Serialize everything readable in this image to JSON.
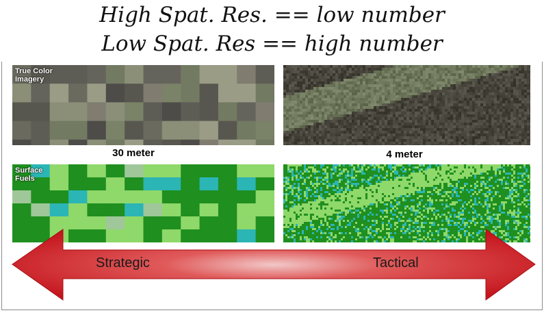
{
  "title": {
    "line1": "High Spat. Res. == low number",
    "line2": "Low Spat. Res == high number"
  },
  "panels": {
    "true_color_label": "True Color\nImagery",
    "surface_fuels_label": "Surface\nFuels",
    "coarse_resolution_label": "30 meter",
    "fine_resolution_label": "4 meter"
  },
  "arrow": {
    "left_label": "Strategic",
    "right_label": "Tactical",
    "color": "#c4141c"
  },
  "colors": {
    "fuel_dark_green": "#1f8f1f",
    "fuel_light_green": "#8fd86a",
    "fuel_teal": "#2bb5b5"
  }
}
